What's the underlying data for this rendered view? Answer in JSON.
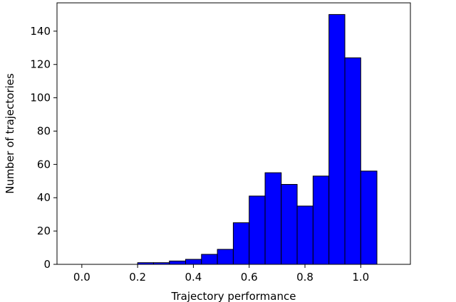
{
  "chart_data": {
    "type": "histogram",
    "xlabel": "Trajectory performance",
    "ylabel": "Number of trajectories",
    "bins": [
      -0.029,
      0.028,
      0.086,
      0.143,
      0.2,
      0.257,
      0.314,
      0.372,
      0.429,
      0.486,
      0.543,
      0.6,
      0.657,
      0.715,
      0.772,
      0.829,
      0.886,
      0.943,
      1.0,
      1.058,
      1.115
    ],
    "counts": [
      0,
      0,
      0,
      0,
      1,
      1,
      2,
      3,
      6,
      9,
      25,
      41,
      55,
      48,
      35,
      53,
      150,
      124,
      56,
      0
    ],
    "color": "#0000ff",
    "edgecolor": "#000000",
    "xlim": [
      -0.089,
      1.178
    ],
    "ylim": [
      0,
      157
    ],
    "xticks": [
      {
        "value": 0,
        "label": "0.0"
      },
      {
        "value": 0.2,
        "label": "0.2"
      },
      {
        "value": 0.4,
        "label": "0.4"
      },
      {
        "value": 0.6,
        "label": "0.6"
      },
      {
        "value": 0.8,
        "label": "0.8"
      },
      {
        "value": 1,
        "label": "1.0"
      }
    ],
    "yticks": [
      0,
      20,
      40,
      60,
      80,
      100,
      120,
      140
    ]
  }
}
